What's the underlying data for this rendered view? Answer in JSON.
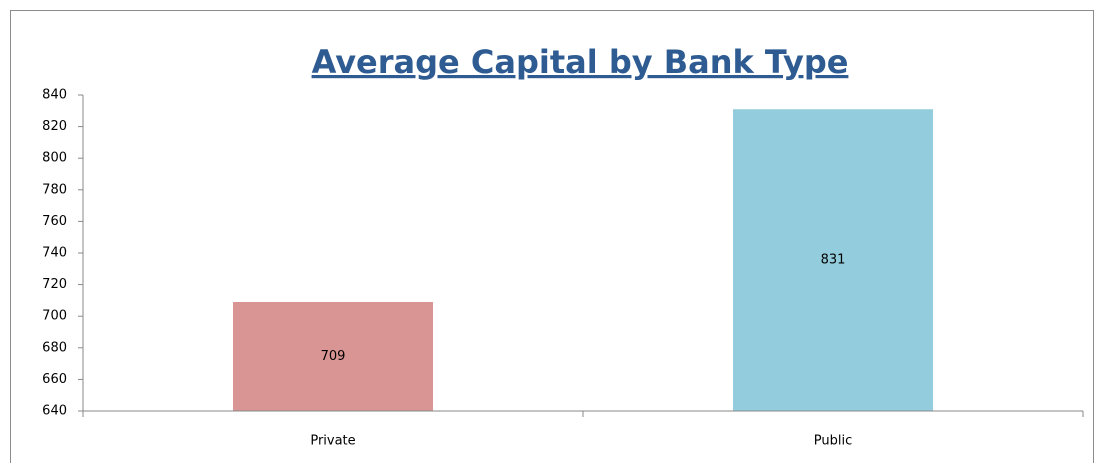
{
  "chart_data": {
    "type": "bar",
    "title": "Average Capital by Bank Type",
    "categories": [
      "Private",
      "Public"
    ],
    "values": [
      709,
      831
    ],
    "colors": [
      "#d99594",
      "#93cddd"
    ],
    "ylim": [
      640,
      840
    ],
    "yticks": [
      640,
      660,
      680,
      700,
      720,
      740,
      760,
      780,
      800,
      820,
      840
    ],
    "grid": false
  }
}
